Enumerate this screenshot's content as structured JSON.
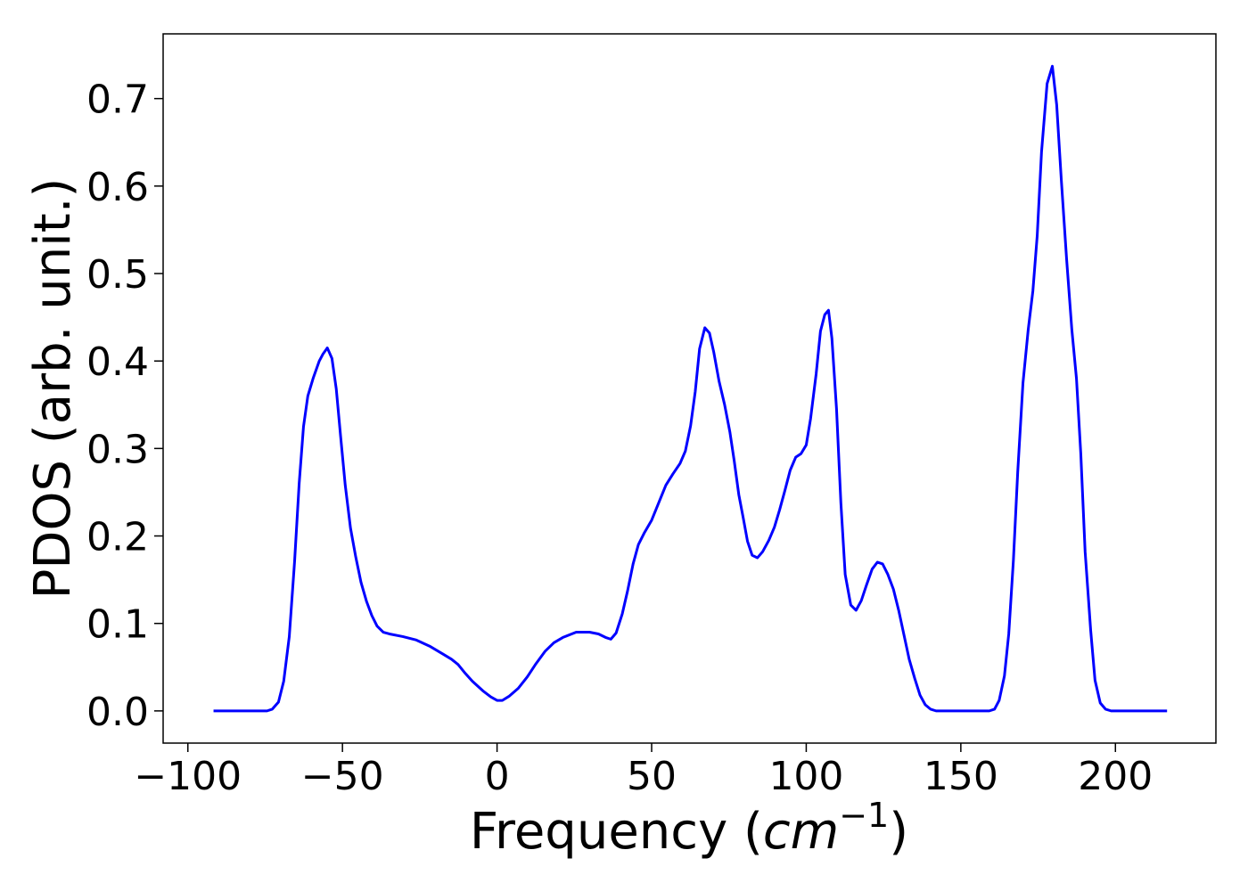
{
  "chart_data": {
    "type": "line",
    "x_label": [
      "Frequency (",
      "cm",
      "−1",
      ")"
    ],
    "y_label": "PDOS (arb. unit.)",
    "x": [
      -91.7,
      -74.4,
      -72.7,
      -70.7,
      -69,
      -67.2,
      -65.5,
      -64,
      -62.6,
      -61.2,
      -59.5,
      -57.5,
      -56.3,
      -54.9,
      -53.4,
      -52,
      -50.6,
      -49.1,
      -47.4,
      -45.7,
      -44,
      -42.2,
      -40.5,
      -38.8,
      -36.8,
      -34.8,
      -30.5,
      -26.1,
      -21.8,
      -17.5,
      -14.7,
      -12.6,
      -10.3,
      -8,
      -4.6,
      -2,
      0,
      1.7,
      4,
      6.9,
      9.8,
      12.6,
      15.5,
      18.4,
      21.3,
      25.6,
      29.9,
      32.8,
      35.1,
      36.8,
      38.5,
      40.5,
      42.2,
      44,
      45.7,
      47.7,
      50,
      52.3,
      54.6,
      56.9,
      59.2,
      60.9,
      62.6,
      64.1,
      65.5,
      67.2,
      68.7,
      70.1,
      71.8,
      73.6,
      75.3,
      76.7,
      78.2,
      79.6,
      81,
      82.5,
      84.2,
      85.9,
      87.9,
      89.7,
      91.4,
      93.1,
      94.8,
      96.6,
      98.3,
      100,
      101.4,
      103.2,
      104.6,
      106,
      107.2,
      108.3,
      109.8,
      111.2,
      112.6,
      114.4,
      116.1,
      117.8,
      119.5,
      121.3,
      123,
      124.7,
      126.4,
      128.2,
      129.9,
      131.6,
      133.3,
      135.1,
      136.8,
      138.5,
      140.2,
      142,
      159.2,
      160.9,
      162.4,
      164.1,
      165.5,
      167,
      168.4,
      170.1,
      171.8,
      173.3,
      174.7,
      176.1,
      177.9,
      179.6,
      181,
      182.5,
      184.2,
      185.9,
      187.4,
      188.8,
      190.2,
      192,
      193.4,
      195.1,
      196.8,
      198.6,
      216.7
    ],
    "series": [
      {
        "color": "#0000ff",
        "values": [
          0,
          0,
          0.002,
          0.01,
          0.034,
          0.085,
          0.17,
          0.26,
          0.325,
          0.36,
          0.38,
          0.4,
          0.408,
          0.415,
          0.403,
          0.368,
          0.314,
          0.258,
          0.209,
          0.176,
          0.147,
          0.125,
          0.109,
          0.097,
          0.09,
          0.088,
          0.085,
          0.081,
          0.074,
          0.065,
          0.059,
          0.053,
          0.043,
          0.034,
          0.023,
          0.016,
          0.012,
          0.012,
          0.017,
          0.026,
          0.039,
          0.054,
          0.068,
          0.078,
          0.084,
          0.09,
          0.09,
          0.088,
          0.084,
          0.082,
          0.089,
          0.111,
          0.137,
          0.168,
          0.19,
          0.204,
          0.218,
          0.238,
          0.258,
          0.271,
          0.283,
          0.297,
          0.326,
          0.365,
          0.414,
          0.438,
          0.432,
          0.41,
          0.377,
          0.35,
          0.319,
          0.286,
          0.247,
          0.221,
          0.194,
          0.178,
          0.175,
          0.182,
          0.195,
          0.21,
          0.23,
          0.252,
          0.275,
          0.29,
          0.294,
          0.304,
          0.334,
          0.385,
          0.434,
          0.453,
          0.458,
          0.426,
          0.345,
          0.238,
          0.156,
          0.121,
          0.115,
          0.126,
          0.144,
          0.162,
          0.17,
          0.168,
          0.156,
          0.139,
          0.115,
          0.087,
          0.059,
          0.037,
          0.018,
          0.007,
          0.002,
          0,
          0,
          0.002,
          0.012,
          0.04,
          0.088,
          0.172,
          0.273,
          0.375,
          0.436,
          0.48,
          0.543,
          0.639,
          0.717,
          0.737,
          0.693,
          0.607,
          0.517,
          0.436,
          0.38,
          0.294,
          0.182,
          0.092,
          0.035,
          0.009,
          0.002,
          0,
          0
        ]
      }
    ],
    "xlim": [
      -108,
      232.5
    ],
    "ylim": [
      -0.0368,
      0.774
    ],
    "xticks": [
      {
        "value": -100,
        "label": "−100"
      },
      {
        "value": -50,
        "label": "−50"
      },
      0,
      50,
      100,
      150,
      200
    ],
    "yticks": [
      {
        "value": 0,
        "label": "0.0"
      },
      0.1,
      0.2,
      0.3,
      0.4,
      0.5,
      0.6,
      0.7
    ],
    "grid": false
  }
}
